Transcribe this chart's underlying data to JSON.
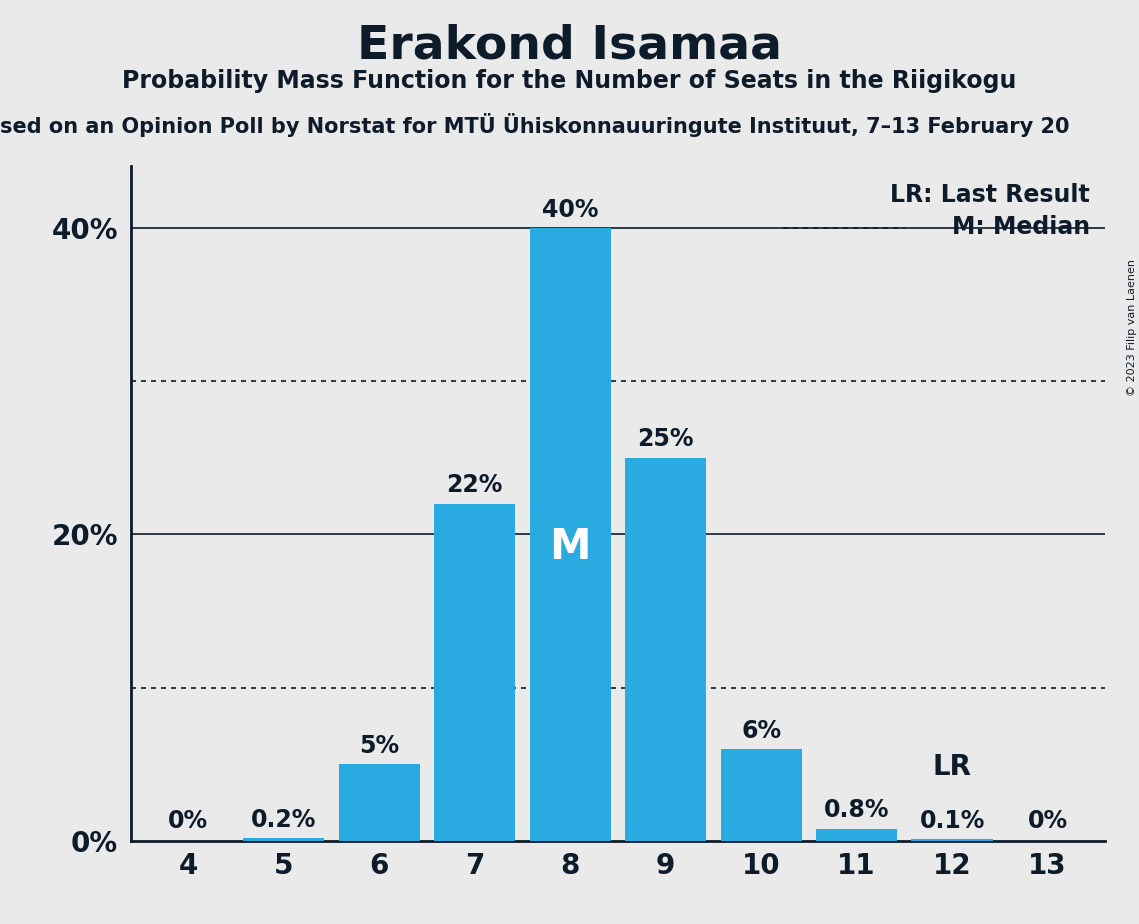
{
  "title": "Erakond Isamaa",
  "subtitle": "Probability Mass Function for the Number of Seats in the Riigikogu",
  "source": "sed on an Opinion Poll by Norstat for MTÜ Ühiskonnauuringute Instituut, 7–13 February 20",
  "copyright": "© 2023 Filip van Laenen",
  "categories": [
    4,
    5,
    6,
    7,
    8,
    9,
    10,
    11,
    12,
    13
  ],
  "values": [
    0.0,
    0.2,
    5.0,
    22.0,
    40.0,
    25.0,
    6.0,
    0.8,
    0.1,
    0.0
  ],
  "bar_color": "#29ABE2",
  "median_index": 4,
  "lr_index": 8,
  "background_color": "#EAEAEA",
  "ylim": [
    0,
    44
  ],
  "yticks": [
    0,
    20,
    40
  ],
  "ytick_labels": [
    "0%",
    "20%",
    "40%"
  ],
  "dotted_lines": [
    10,
    30
  ],
  "text_color": "#0D1B2A",
  "white": "#FFFFFF",
  "legend_lr": "LR: Last Result",
  "legend_m": "M: Median",
  "title_fontsize": 34,
  "subtitle_fontsize": 17,
  "source_fontsize": 15,
  "bar_label_fontsize": 17,
  "axis_tick_fontsize": 20,
  "legend_fontsize": 17,
  "m_fontsize": 30
}
